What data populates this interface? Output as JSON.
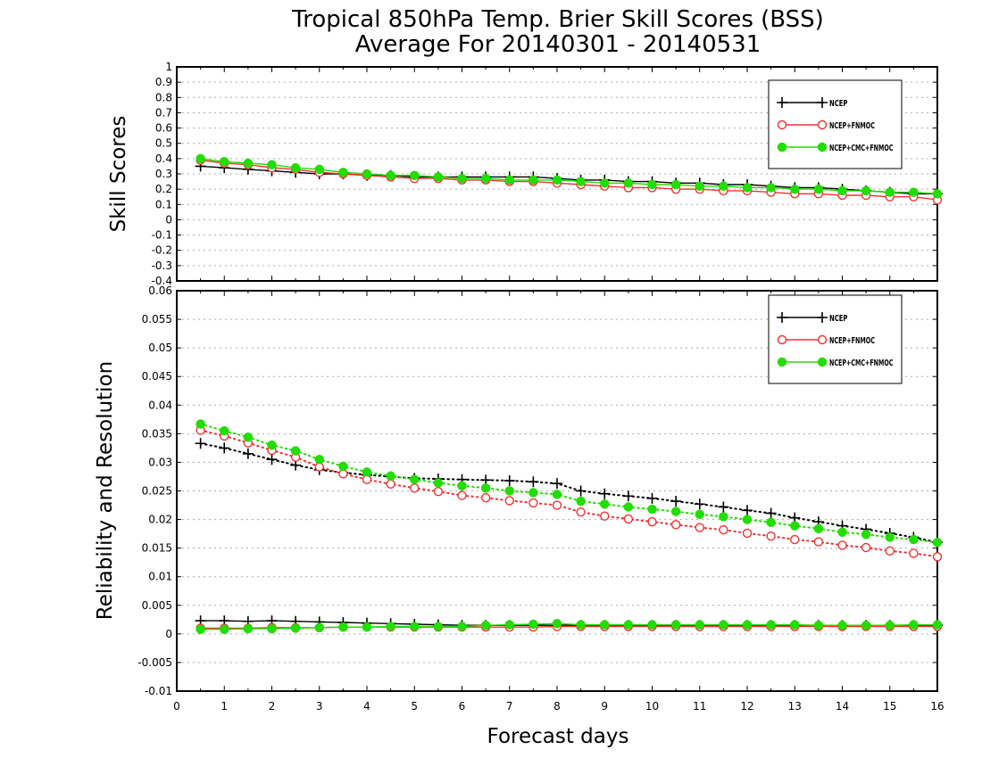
{
  "chart_data": {
    "title_line1": "Tropical 850hPa Temp. Brier Skill Scores (BSS)",
    "title_line2": "Average For 20140301 - 20140531",
    "xlabel": "Forecast days",
    "x_ticks": [
      "0",
      "1",
      "2",
      "3",
      "4",
      "5",
      "6",
      "7",
      "8",
      "9",
      "10",
      "11",
      "12",
      "13",
      "14",
      "15",
      "16"
    ],
    "xlim": [
      0,
      16
    ],
    "x": [
      0.5,
      1,
      1.5,
      2,
      2.5,
      3,
      3.5,
      4,
      4.5,
      5,
      5.5,
      6,
      6.5,
      7,
      7.5,
      8,
      8.5,
      9,
      9.5,
      10,
      10.5,
      11,
      11.5,
      12,
      12.5,
      13,
      13.5,
      14,
      14.5,
      15,
      15.5,
      16
    ],
    "colors": {
      "NCEP": "#000000",
      "NCEP+FNMOC": "#ee3333",
      "NCEP+CMC+FNMOC": "#22dd00"
    },
    "panels": [
      {
        "type": "line",
        "ylabel": "Skill Scores",
        "ylim": [
          -0.4,
          1
        ],
        "y_ticks": [
          "-0.4",
          "-0.3",
          "-0.2",
          "-0.1",
          "0",
          "0.1",
          "0.2",
          "0.3",
          "0.4",
          "0.5",
          "0.6",
          "0.7",
          "0.8",
          "0.9",
          "1"
        ],
        "grid": true,
        "legend_position": "top-right",
        "legend": [
          "NCEP",
          "NCEP+FNMOC",
          "NCEP+CMC+FNMOC"
        ],
        "series": [
          {
            "name": "NCEP",
            "style": "solid",
            "marker": "plus",
            "values": [
              0.35,
              0.34,
              0.33,
              0.32,
              0.31,
              0.3,
              0.3,
              0.29,
              0.29,
              0.28,
              0.28,
              0.28,
              0.28,
              0.28,
              0.28,
              0.27,
              0.26,
              0.26,
              0.25,
              0.25,
              0.24,
              0.24,
              0.23,
              0.23,
              0.22,
              0.21,
              0.21,
              0.2,
              0.19,
              0.18,
              0.17,
              0.17
            ]
          },
          {
            "name": "NCEP+FNMOC",
            "style": "solid",
            "marker": "open-circle",
            "values": [
              0.39,
              0.37,
              0.36,
              0.34,
              0.33,
              0.31,
              0.3,
              0.29,
              0.28,
              0.27,
              0.27,
              0.26,
              0.26,
              0.25,
              0.25,
              0.24,
              0.23,
              0.22,
              0.21,
              0.21,
              0.2,
              0.2,
              0.19,
              0.19,
              0.18,
              0.17,
              0.17,
              0.16,
              0.16,
              0.15,
              0.15,
              0.13
            ]
          },
          {
            "name": "NCEP+CMC+FNMOC",
            "style": "solid",
            "marker": "filled-circle",
            "values": [
              0.4,
              0.38,
              0.37,
              0.36,
              0.34,
              0.33,
              0.31,
              0.3,
              0.29,
              0.29,
              0.28,
              0.27,
              0.27,
              0.26,
              0.26,
              0.26,
              0.25,
              0.24,
              0.24,
              0.23,
              0.23,
              0.22,
              0.22,
              0.21,
              0.21,
              0.2,
              0.2,
              0.19,
              0.19,
              0.18,
              0.18,
              0.17
            ]
          }
        ]
      },
      {
        "type": "line",
        "ylabel": "Reliability and Resolution",
        "ylim": [
          -0.01,
          0.06
        ],
        "y_ticks": [
          "-0.01",
          "-0.005",
          "0",
          "0.005",
          "0.01",
          "0.015",
          "0.02",
          "0.025",
          "0.03",
          "0.035",
          "0.04",
          "0.045",
          "0.05",
          "0.055",
          "0.06"
        ],
        "grid": true,
        "legend_position": "top-right",
        "legend": [
          "NCEP",
          "NCEP+FNMOC",
          "NCEP+CMC+FNMOC"
        ],
        "series": [
          {
            "name": "NCEP",
            "metric": "resolution",
            "style": "dotted",
            "marker": "plus",
            "values": [
              0.0333,
              0.0325,
              0.0315,
              0.0305,
              0.0295,
              0.0287,
              0.0282,
              0.0278,
              0.0275,
              0.0272,
              0.0271,
              0.027,
              0.0269,
              0.0268,
              0.0266,
              0.0263,
              0.025,
              0.0245,
              0.0241,
              0.0237,
              0.0232,
              0.0227,
              0.0222,
              0.0216,
              0.0211,
              0.0203,
              0.0196,
              0.0189,
              0.0183,
              0.0176,
              0.0169,
              0.016
            ]
          },
          {
            "name": "NCEP+FNMOC",
            "metric": "resolution",
            "style": "dotted",
            "marker": "open-circle",
            "values": [
              0.0356,
              0.0346,
              0.0334,
              0.0321,
              0.0309,
              0.0292,
              0.028,
              0.027,
              0.0262,
              0.0255,
              0.0249,
              0.0242,
              0.0238,
              0.0233,
              0.0229,
              0.0225,
              0.0213,
              0.0206,
              0.0201,
              0.0196,
              0.0191,
              0.0186,
              0.0182,
              0.0176,
              0.0171,
              0.0165,
              0.0161,
              0.0155,
              0.0151,
              0.0145,
              0.0141,
              0.0135
            ]
          },
          {
            "name": "NCEP+CMC+FNMOC",
            "metric": "resolution",
            "style": "dotted",
            "marker": "filled-circle",
            "values": [
              0.0367,
              0.0355,
              0.0344,
              0.033,
              0.032,
              0.0305,
              0.0293,
              0.0283,
              0.0276,
              0.027,
              0.0264,
              0.0259,
              0.0255,
              0.025,
              0.0247,
              0.0244,
              0.0232,
              0.0227,
              0.0222,
              0.0218,
              0.0214,
              0.0209,
              0.0205,
              0.02,
              0.0195,
              0.0189,
              0.0184,
              0.0178,
              0.0174,
              0.0169,
              0.0165,
              0.016
            ]
          },
          {
            "name": "NCEP",
            "metric": "reliability",
            "style": "solid",
            "marker": "plus",
            "values": [
              0.0023,
              0.0023,
              0.0022,
              0.0023,
              0.0022,
              0.0021,
              0.002,
              0.0019,
              0.0018,
              0.0017,
              0.0016,
              0.0015,
              0.0015,
              0.0015,
              0.0015,
              0.0015,
              0.0015,
              0.0015,
              0.0015,
              0.0015,
              0.0015,
              0.0015,
              0.0015,
              0.0015,
              0.0015,
              0.0015,
              0.0015,
              0.0015,
              0.0015,
              0.0015,
              0.0015,
              0.0015
            ]
          },
          {
            "name": "NCEP+FNMOC",
            "metric": "reliability",
            "style": "solid",
            "marker": "open-circle",
            "values": [
              0.001,
              0.001,
              0.001,
              0.0011,
              0.0011,
              0.0011,
              0.0012,
              0.0012,
              0.0012,
              0.0012,
              0.0012,
              0.0012,
              0.0012,
              0.0012,
              0.0012,
              0.0013,
              0.0013,
              0.0013,
              0.0013,
              0.0013,
              0.0013,
              0.0013,
              0.0013,
              0.0013,
              0.0013,
              0.0013,
              0.0013,
              0.0013,
              0.0013,
              0.0013,
              0.0013,
              0.0013
            ]
          },
          {
            "name": "NCEP+CMC+FNMOC",
            "metric": "reliability",
            "style": "solid",
            "marker": "filled-circle",
            "values": [
              0.0008,
              0.0008,
              0.0009,
              0.0009,
              0.001,
              0.0011,
              0.0012,
              0.0012,
              0.0013,
              0.0013,
              0.0013,
              0.0013,
              0.0015,
              0.0016,
              0.0017,
              0.0018,
              0.0016,
              0.0016,
              0.0016,
              0.0016,
              0.0016,
              0.0016,
              0.0016,
              0.0016,
              0.0016,
              0.0016,
              0.0015,
              0.0015,
              0.0015,
              0.0015,
              0.0016,
              0.0016
            ]
          }
        ]
      }
    ]
  }
}
